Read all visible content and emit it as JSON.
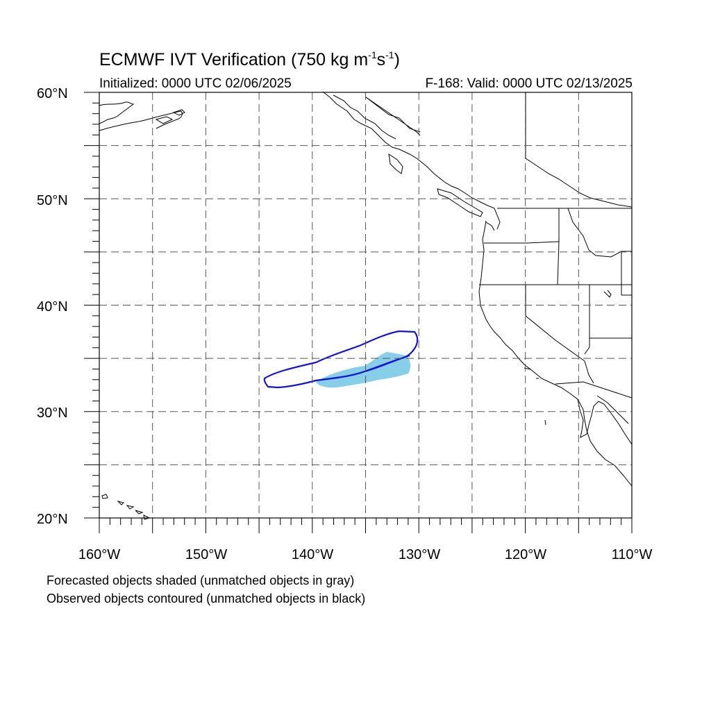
{
  "title": {
    "main": "ECMWF IVT Verification (750 kg m",
    "sup1": "-1",
    "s": "s",
    "sup2": "-1",
    "close": ")"
  },
  "subtitle": {
    "initialized": "Initialized: 0000 UTC 02/06/2025",
    "valid": "F-168: Valid: 0000 UTC 02/13/2025"
  },
  "axes": {
    "lat_labels": [
      "60°N",
      "50°N",
      "40°N",
      "30°N",
      "20°N"
    ],
    "lon_labels": [
      "160°W",
      "150°W",
      "140°W",
      "130°W",
      "120°W",
      "110°W"
    ],
    "lat_range": [
      20,
      60
    ],
    "lon_range": [
      -160,
      -110
    ],
    "grid": true,
    "grid_spacing_deg": 5
  },
  "objects": {
    "forecast_color": "#87cee8",
    "observed_color": "#1414d2",
    "coastline_color": "#000000"
  },
  "captions": [
    "Forecasted objects shaded (unmatched objects in gray)",
    "Observed objects contoured (unmatched objects in black)"
  ]
}
